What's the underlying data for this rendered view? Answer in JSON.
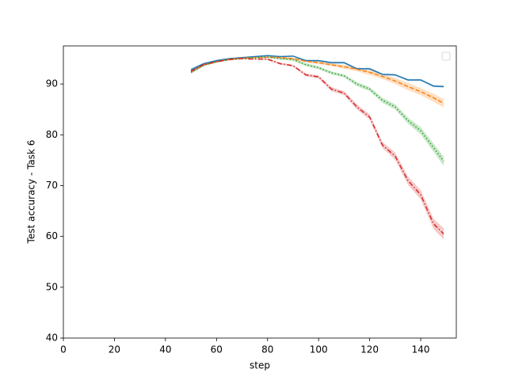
{
  "chart_data": {
    "type": "line",
    "xlabel": "step",
    "ylabel": "Test accuracy - Task 6",
    "x": [
      50,
      55,
      60,
      65,
      70,
      75,
      80,
      85,
      90,
      95,
      100,
      105,
      110,
      115,
      120,
      125,
      130,
      135,
      140,
      145,
      149
    ],
    "series": [
      {
        "color": "#1f77b4",
        "linestyle": "solid",
        "values": [
          92.8,
          94.0,
          94.6,
          95.0,
          95.2,
          95.4,
          95.6,
          95.4,
          95.5,
          94.6,
          94.6,
          94.2,
          94.2,
          93.0,
          93.0,
          91.9,
          91.8,
          90.8,
          90.8,
          89.6,
          89.5
        ],
        "errors": [
          0.3,
          0.2,
          0.2,
          0.1,
          0.1,
          0.1,
          0.1,
          0.1,
          0.1,
          0.2,
          0.2,
          0.2,
          0.2,
          0.2,
          0.2,
          0.2,
          0.2,
          0.2,
          0.2,
          0.2,
          0.2
        ]
      },
      {
        "color": "#ff7f0e",
        "linestyle": "dashed",
        "values": [
          92.4,
          93.8,
          94.4,
          94.9,
          95.1,
          95.2,
          95.3,
          95.2,
          95.0,
          94.5,
          94.2,
          93.8,
          93.4,
          92.9,
          92.3,
          91.5,
          90.6,
          89.5,
          88.5,
          87.3,
          86.2
        ],
        "errors": [
          0.3,
          0.2,
          0.2,
          0.1,
          0.1,
          0.1,
          0.1,
          0.2,
          0.2,
          0.3,
          0.3,
          0.3,
          0.4,
          0.4,
          0.5,
          0.5,
          0.6,
          0.7,
          0.7,
          0.8,
          0.8
        ]
      },
      {
        "color": "#2ca02c",
        "linestyle": "dotted",
        "values": [
          92.3,
          93.7,
          94.4,
          94.8,
          95.0,
          95.2,
          95.3,
          95.0,
          94.8,
          93.8,
          93.2,
          92.2,
          91.6,
          90.0,
          89.0,
          86.8,
          85.5,
          82.8,
          80.8,
          77.5,
          74.8
        ],
        "errors": [
          0.3,
          0.2,
          0.2,
          0.1,
          0.1,
          0.1,
          0.1,
          0.2,
          0.2,
          0.3,
          0.3,
          0.3,
          0.3,
          0.4,
          0.4,
          0.5,
          0.5,
          0.6,
          0.7,
          0.8,
          0.9
        ]
      },
      {
        "color": "#d62728",
        "linestyle": "dashdot",
        "values": [
          92.5,
          93.8,
          94.4,
          94.8,
          95.0,
          94.9,
          94.9,
          94.0,
          93.6,
          91.8,
          91.4,
          89.0,
          88.2,
          85.5,
          83.5,
          78.0,
          75.8,
          71.0,
          68.2,
          62.5,
          60.5
        ],
        "errors": [
          0.3,
          0.2,
          0.2,
          0.1,
          0.1,
          0.1,
          0.2,
          0.2,
          0.2,
          0.3,
          0.3,
          0.4,
          0.4,
          0.5,
          0.5,
          0.6,
          0.7,
          0.8,
          0.9,
          1.0,
          1.1
        ]
      }
    ],
    "xlim": [
      0,
      153.95
    ],
    "xticks": [
      0,
      20,
      40,
      60,
      80,
      100,
      120,
      140
    ],
    "ylim": [
      40,
      97.5
    ],
    "yticks": [
      40,
      50,
      60,
      70,
      80,
      90
    ],
    "legend": "upper right"
  }
}
